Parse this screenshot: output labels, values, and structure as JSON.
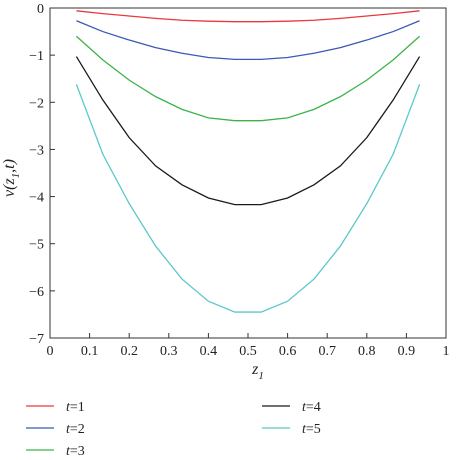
{
  "chart_data": {
    "type": "line",
    "x": [
      0.0667,
      0.1333,
      0.2,
      0.2667,
      0.3333,
      0.4,
      0.4667,
      0.5333,
      0.6,
      0.6667,
      0.7333,
      0.8,
      0.8667,
      0.9333
    ],
    "series": [
      {
        "name": "t=1",
        "color": "#e8393b",
        "values": [
          -0.06,
          -0.12,
          -0.17,
          -0.22,
          -0.26,
          -0.28,
          -0.29,
          -0.29,
          -0.28,
          -0.26,
          -0.22,
          -0.17,
          -0.12,
          -0.06
        ]
      },
      {
        "name": "t=2",
        "color": "#3c58b5",
        "values": [
          -0.27,
          -0.5,
          -0.68,
          -0.84,
          -0.96,
          -1.05,
          -1.09,
          -1.09,
          -1.05,
          -0.96,
          -0.84,
          -0.68,
          -0.5,
          -0.27
        ]
      },
      {
        "name": "t=3",
        "color": "#3cb34a",
        "values": [
          -0.6,
          -1.1,
          -1.53,
          -1.88,
          -2.15,
          -2.33,
          -2.39,
          -2.39,
          -2.33,
          -2.15,
          -1.88,
          -1.53,
          -1.1,
          -0.6
        ]
      },
      {
        "name": "t=4",
        "color": "#1a1a1a",
        "values": [
          -1.03,
          -1.95,
          -2.75,
          -3.35,
          -3.75,
          -4.03,
          -4.17,
          -4.17,
          -4.03,
          -3.75,
          -3.35,
          -2.75,
          -1.95,
          -1.03
        ]
      },
      {
        "name": "t=5",
        "color": "#5cc8c8",
        "values": [
          -1.62,
          -3.1,
          -4.15,
          -5.05,
          -5.75,
          -6.22,
          -6.45,
          -6.45,
          -6.22,
          -5.75,
          -5.05,
          -4.15,
          -3.1,
          -1.62
        ]
      }
    ],
    "xlabel": "z",
    "xlabel_sub": "1",
    "ylabel": "v(z",
    "ylabel_sub": "1",
    "ylabel_tail": ",t)",
    "xlim": [
      0,
      1
    ],
    "ylim": [
      -7,
      0
    ],
    "xticks": [
      "0",
      "0.1",
      "0.2",
      "0.3",
      "0.4",
      "0.5",
      "0.6",
      "0.7",
      "0.8",
      "0.9",
      "1"
    ],
    "yticks": [
      "0",
      "−1",
      "−2",
      "−3",
      "−4",
      "−5",
      "−6",
      "−7"
    ],
    "grid": false,
    "legend_position": "bottom",
    "legend": [
      {
        "var": "t",
        "label": "=1"
      },
      {
        "var": "t",
        "label": "=2"
      },
      {
        "var": "t",
        "label": "=3"
      },
      {
        "var": "t",
        "label": "=4"
      },
      {
        "var": "t",
        "label": "=5"
      }
    ]
  }
}
